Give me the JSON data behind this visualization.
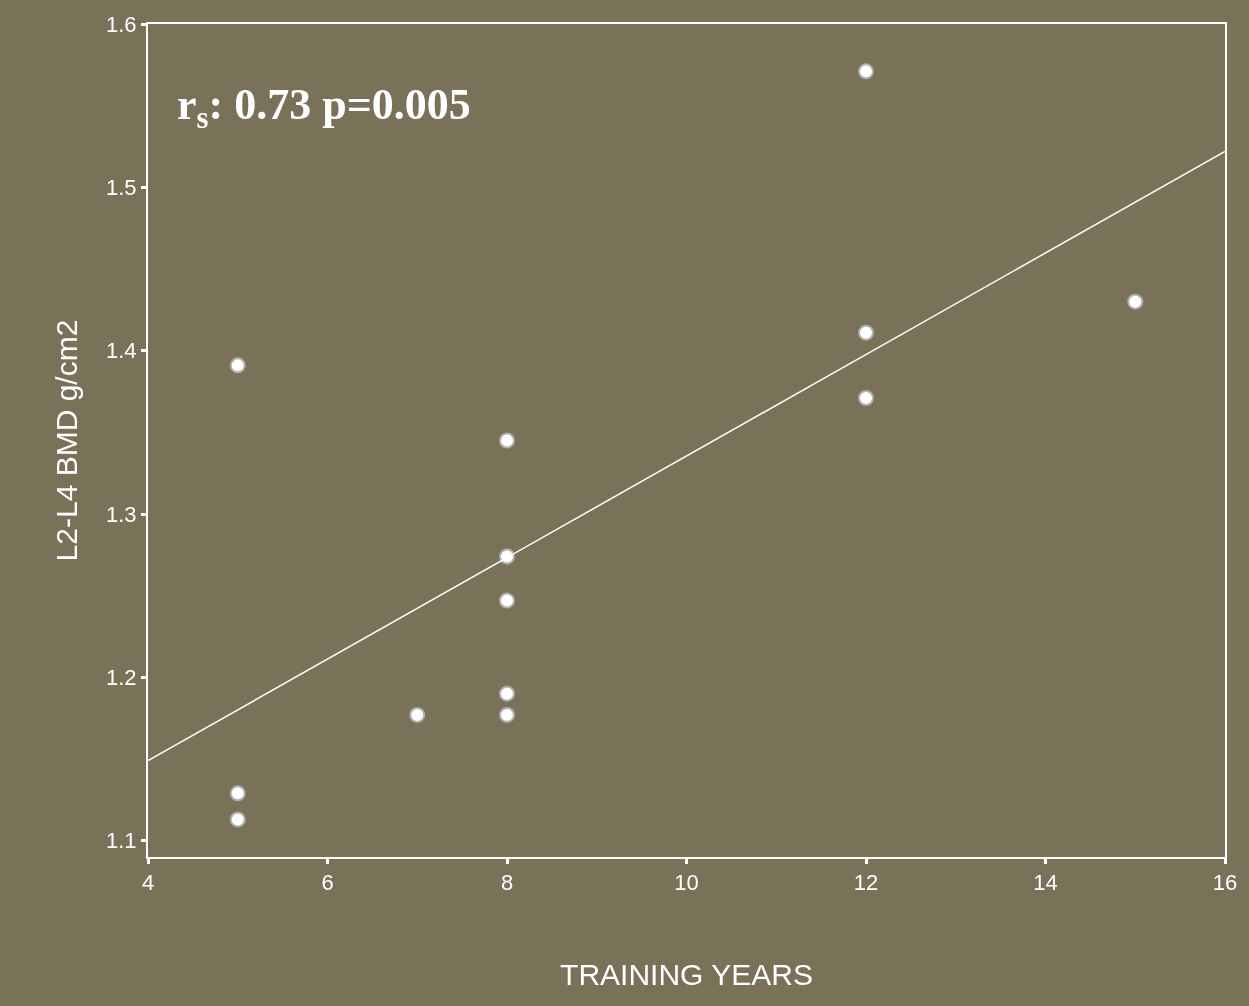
{
  "chart_data": {
    "type": "scatter",
    "xlabel": "TRAINING YEARS",
    "ylabel": "L2-L4 BMD g/cm2",
    "annotations": [
      "r$_{s}$: 0.73 p=0.005"
    ],
    "series": [
      {
        "marker": "circle",
        "color": "#ffffff",
        "x": [
          5,
          5,
          5,
          7,
          8,
          8,
          8,
          8,
          8,
          12,
          12,
          12,
          15
        ],
        "values": [
          1.391,
          1.129,
          1.113,
          1.177,
          1.345,
          1.274,
          1.247,
          1.19,
          1.177,
          1.571,
          1.411,
          1.371,
          1.43
        ]
      },
      {
        "type": "line",
        "marker": "none",
        "color": "#ffffff",
        "x": [
          4,
          16
        ],
        "values": [
          1.149,
          1.522
        ]
      }
    ],
    "xlim": [
      4,
      16
    ],
    "xticks": [
      4,
      6,
      8,
      10,
      12,
      14,
      16
    ],
    "ylim": [
      1.09,
      1.6
    ],
    "yticks": [
      1.1,
      1.2,
      1.3,
      1.4,
      1.5,
      1.6
    ],
    "grid": false
  }
}
